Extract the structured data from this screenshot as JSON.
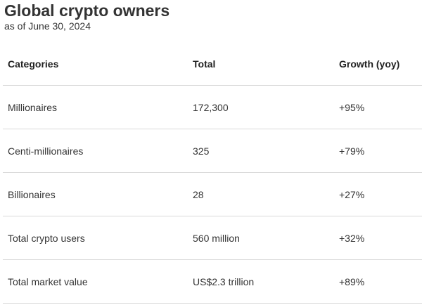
{
  "title": "Global crypto owners",
  "subtitle": "as of June 30, 2024",
  "chart_data": {
    "type": "table",
    "title": "Global crypto owners",
    "subtitle": "as of June 30, 2024",
    "columns": [
      "Categories",
      "Total",
      "Growth (yoy)"
    ],
    "rows": [
      [
        "Millionaires",
        "172,300",
        "+95%"
      ],
      [
        "Centi-millionaires",
        "325",
        "+79%"
      ],
      [
        "Billionaires",
        "28",
        "+27%"
      ],
      [
        "Total crypto users",
        "560 million",
        "+32%"
      ],
      [
        "Total market value",
        "US$2.3 trillion",
        "+89%"
      ]
    ]
  }
}
